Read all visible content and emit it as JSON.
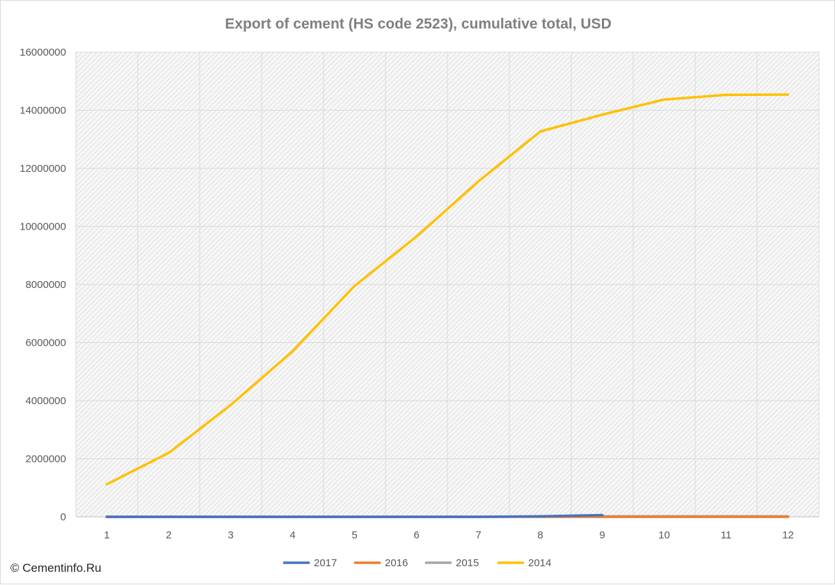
{
  "chart_data": {
    "type": "line",
    "title": "Export of cement (HS code 2523), cumulative total, USD",
    "xlabel": "",
    "ylabel": "",
    "x": [
      1,
      2,
      3,
      4,
      5,
      6,
      7,
      8,
      9,
      10,
      11,
      12
    ],
    "x_tick_labels": [
      "1",
      "2",
      "3",
      "4",
      "5",
      "6",
      "7",
      "8",
      "9",
      "10",
      "11",
      "12"
    ],
    "ylim": [
      0,
      16000000
    ],
    "y_ticks": [
      0,
      2000000,
      4000000,
      6000000,
      8000000,
      10000000,
      12000000,
      14000000,
      16000000
    ],
    "y_tick_labels": [
      "0",
      "2000000",
      "4000000",
      "6000000",
      "8000000",
      "10000000",
      "12000000",
      "14000000",
      "16000000"
    ],
    "grid": true,
    "plot_background": "hatched light gray",
    "legend_position": "bottom",
    "series": [
      {
        "name": "2017",
        "color": "#4472c4",
        "values": [
          0,
          0,
          0,
          0,
          0,
          0,
          0,
          20000,
          60000,
          null,
          null,
          null
        ]
      },
      {
        "name": "2016",
        "color": "#ed7d31",
        "values": [
          0,
          0,
          0,
          0,
          0,
          0,
          0,
          0,
          0,
          0,
          0,
          0
        ]
      },
      {
        "name": "2015",
        "color": "#a5a5a5",
        "values": [
          0,
          0,
          0,
          0,
          0,
          0,
          0,
          10000,
          20000,
          20000,
          20000,
          20000
        ]
      },
      {
        "name": "2014",
        "color": "#ffc000",
        "values": [
          1120000,
          2200000,
          3850000,
          5700000,
          7950000,
          9650000,
          11550000,
          13270000,
          13850000,
          14370000,
          14530000,
          14540000
        ]
      }
    ]
  },
  "footer": {
    "copyright": "© Cementinfo.Ru"
  }
}
